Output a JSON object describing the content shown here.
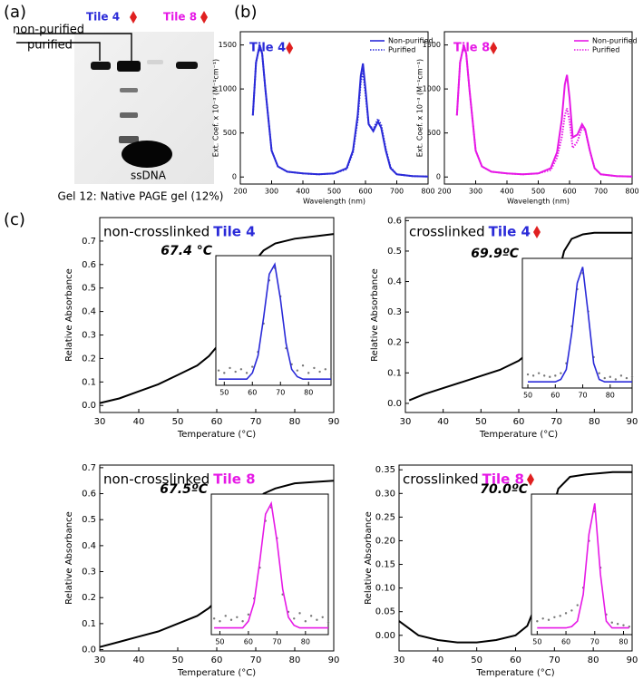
{
  "panel_labels": [
    "(a)",
    "(b)",
    "(c)"
  ],
  "gel": {
    "lane_labels": [
      "Tile 4",
      "Tile 8"
    ],
    "band_labels": [
      "non-purified",
      "purified"
    ],
    "ssdna_label": "ssDNA",
    "caption": "Gel 12: Native PAGE gel (12%)"
  },
  "chart_data": [
    {
      "type": "line",
      "title": "Tile 4",
      "title_color": "#2a2ad8",
      "title_marker": true,
      "x_label": "Wavelength (nm)",
      "y_label": "Ext. Coef. x 10⁻³ (M⁻¹cm⁻¹)",
      "legend": "top-right",
      "x": [
        240,
        250,
        262,
        270,
        280,
        300,
        320,
        350,
        400,
        450,
        500,
        540,
        560,
        575,
        585,
        592,
        600,
        610,
        625,
        640,
        650,
        665,
        680,
        700,
        750,
        800
      ],
      "series": [
        {
          "name": "Non-purified",
          "color": "#2a2ad8",
          "dash": false,
          "values": [
            700,
            1300,
            1500,
            1400,
            1000,
            300,
            120,
            60,
            40,
            30,
            40,
            100,
            300,
            700,
            1150,
            1290,
            1000,
            600,
            520,
            630,
            560,
            300,
            100,
            30,
            10,
            5
          ]
        },
        {
          "name": "Purified",
          "color": "#2a2ad8",
          "dash": true,
          "values": [
            700,
            1300,
            1500,
            1400,
            1000,
            300,
            120,
            60,
            40,
            30,
            40,
            90,
            280,
            650,
            1080,
            1200,
            950,
            600,
            540,
            660,
            590,
            320,
            110,
            30,
            10,
            5
          ]
        }
      ],
      "xlim": [
        200,
        800
      ],
      "xticks": [
        200,
        300,
        400,
        500,
        600,
        700,
        800
      ],
      "ylim": [
        -80,
        1650
      ],
      "yticks": [
        0,
        500,
        1000,
        1500
      ]
    },
    {
      "type": "line",
      "title": "Tile 8",
      "title_color": "#e619e6",
      "title_marker": true,
      "x_label": "Wavelength (nm)",
      "y_label": "Ext. Coef. x 10⁻³ (M⁻¹cm⁻¹)",
      "legend": "top-right",
      "x": [
        240,
        250,
        262,
        270,
        280,
        300,
        320,
        350,
        400,
        450,
        500,
        540,
        560,
        575,
        585,
        592,
        600,
        610,
        625,
        640,
        650,
        665,
        680,
        700,
        750,
        800
      ],
      "series": [
        {
          "name": "Non-purified",
          "color": "#e619e6",
          "dash": false,
          "values": [
            700,
            1300,
            1500,
            1400,
            1000,
            300,
            120,
            60,
            40,
            30,
            40,
            100,
            280,
            650,
            1050,
            1160,
            900,
            450,
            480,
            600,
            540,
            300,
            100,
            30,
            10,
            5
          ]
        },
        {
          "name": "Purified",
          "color": "#e619e6",
          "dash": true,
          "values": [
            700,
            1300,
            1500,
            1400,
            1000,
            300,
            120,
            60,
            40,
            30,
            40,
            80,
            220,
            450,
            700,
            780,
            640,
            330,
            400,
            560,
            530,
            300,
            100,
            30,
            10,
            5
          ]
        }
      ],
      "xlim": [
        200,
        800
      ],
      "xticks": [
        200,
        300,
        400,
        500,
        600,
        700,
        800
      ],
      "ylim": [
        -80,
        1650
      ],
      "yticks": [
        0,
        500,
        1000,
        1500
      ]
    },
    {
      "type": "line",
      "title": "non-crosslinked",
      "title_highlight": "Tile 4",
      "title_color": "#2a2ad8",
      "title_marker": false,
      "x_label": "Temperature (°C)",
      "y_label": "Relative Absorbance",
      "x": [
        30,
        35,
        40,
        45,
        50,
        55,
        58,
        60,
        62,
        64,
        66,
        68,
        70,
        72,
        75,
        80,
        85,
        90
      ],
      "series": [
        {
          "color": "#000000",
          "values": [
            0.01,
            0.03,
            0.06,
            0.09,
            0.13,
            0.17,
            0.21,
            0.25,
            0.3,
            0.38,
            0.47,
            0.56,
            0.62,
            0.66,
            0.69,
            0.71,
            0.72,
            0.73
          ]
        }
      ],
      "xlim": [
        30,
        90
      ],
      "xticks": [
        30,
        40,
        50,
        60,
        70,
        80,
        90
      ],
      "ylim": [
        -0.03,
        0.8
      ],
      "yticks": [
        {
          "value": 0,
          "label": "0.0"
        },
        0.1,
        0.2,
        0.3,
        0.4,
        0.5,
        0.6,
        0.7
      ]
    },
    {
      "type": "line",
      "annotation": "67.4 °C",
      "x": [
        48,
        50,
        52,
        54,
        56,
        58,
        60,
        62,
        64,
        66,
        68,
        70,
        72,
        74,
        76,
        78,
        80,
        82,
        84,
        86,
        88
      ],
      "series": [
        {
          "color": "#777777",
          "marker": "dot",
          "values": [
            0.12,
            0.1,
            0.14,
            0.11,
            0.13,
            0.1,
            0.15,
            0.27,
            0.5,
            0.85,
            0.95,
            0.72,
            0.3,
            0.17,
            0.12,
            0.16,
            0.1,
            0.14,
            0.11,
            0.13,
            0.09
          ]
        },
        {
          "color": "#2a2ad8",
          "values": [
            0.05,
            0.05,
            0.05,
            0.05,
            0.05,
            0.05,
            0.1,
            0.24,
            0.55,
            0.9,
            0.98,
            0.7,
            0.34,
            0.13,
            0.07,
            0.05,
            0.05,
            0.05,
            0.05,
            0.05,
            0.05
          ]
        }
      ],
      "xlim": [
        47,
        88
      ],
      "xticks": [
        50,
        60,
        70,
        80
      ],
      "ylim": [
        0,
        1.05
      ]
    },
    {
      "type": "line",
      "title": "crosslinked",
      "title_highlight": "Tile 4",
      "title_color": "#2a2ad8",
      "title_marker": true,
      "x_label": "Temperature (°C)",
      "y_label": "Relative Absorbance",
      "x": [
        31,
        35,
        40,
        45,
        50,
        55,
        60,
        63,
        66,
        68,
        70,
        72,
        74,
        77,
        80,
        85,
        90
      ],
      "series": [
        {
          "color": "#000000",
          "values": [
            0.01,
            0.03,
            0.05,
            0.07,
            0.09,
            0.11,
            0.14,
            0.17,
            0.22,
            0.3,
            0.4,
            0.5,
            0.54,
            0.555,
            0.56,
            0.56,
            0.56
          ]
        }
      ],
      "xlim": [
        30,
        90
      ],
      "xticks": [
        30,
        40,
        50,
        60,
        70,
        80,
        90
      ],
      "ylim": [
        -0.03,
        0.61
      ],
      "yticks": [
        {
          "value": 0,
          "label": "0.0"
        },
        0.1,
        0.2,
        0.3,
        0.4,
        0.5,
        0.6
      ]
    },
    {
      "type": "line",
      "annotation": "69.9ºC",
      "x": [
        50,
        52,
        54,
        56,
        58,
        60,
        62,
        64,
        66,
        68,
        70,
        72,
        74,
        76,
        78,
        80,
        82,
        84,
        86,
        88
      ],
      "series": [
        {
          "color": "#777777",
          "marker": "dot",
          "values": [
            0.11,
            0.1,
            0.12,
            0.1,
            0.09,
            0.1,
            0.12,
            0.2,
            0.5,
            0.8,
            0.93,
            0.62,
            0.25,
            0.12,
            0.08,
            0.09,
            0.07,
            0.1,
            0.08,
            0.09
          ]
        },
        {
          "color": "#2a2ad8",
          "values": [
            0.05,
            0.05,
            0.05,
            0.05,
            0.05,
            0.05,
            0.07,
            0.15,
            0.45,
            0.85,
            0.98,
            0.6,
            0.2,
            0.07,
            0.05,
            0.05,
            0.05,
            0.05,
            0.05,
            0.05
          ]
        }
      ],
      "xlim": [
        48,
        88
      ],
      "xticks": [
        50,
        60,
        70,
        80
      ],
      "ylim": [
        0,
        1.05
      ]
    },
    {
      "type": "line",
      "title": "non-crosslinked",
      "title_highlight": "Tile 8",
      "title_color": "#e619e6",
      "title_marker": false,
      "x_label": "Temperature (°C)",
      "y_label": "Relative Absorbance",
      "x": [
        30,
        35,
        40,
        45,
        50,
        55,
        58,
        60,
        62,
        64,
        66,
        68,
        70,
        72,
        75,
        80,
        85,
        90
      ],
      "series": [
        {
          "color": "#000000",
          "values": [
            0.01,
            0.03,
            0.05,
            0.07,
            0.1,
            0.13,
            0.16,
            0.19,
            0.24,
            0.3,
            0.4,
            0.5,
            0.56,
            0.6,
            0.62,
            0.64,
            0.645,
            0.65
          ]
        }
      ],
      "xlim": [
        30,
        90
      ],
      "xticks": [
        30,
        40,
        50,
        60,
        70,
        80,
        90
      ],
      "ylim": [
        -0.005,
        0.71
      ],
      "yticks": [
        {
          "value": 0,
          "label": "0.0"
        },
        0.1,
        0.2,
        0.3,
        0.4,
        0.5,
        0.6,
        0.7
      ]
    },
    {
      "type": "line",
      "annotation": "67.5ºC",
      "x": [
        48,
        50,
        52,
        54,
        56,
        58,
        60,
        62,
        64,
        66,
        68,
        70,
        72,
        74,
        76,
        78,
        80,
        82,
        84,
        86,
        88
      ],
      "series": [
        {
          "color": "#777777",
          "marker": "dot",
          "values": [
            0.12,
            0.1,
            0.14,
            0.11,
            0.13,
            0.1,
            0.15,
            0.27,
            0.5,
            0.85,
            0.95,
            0.72,
            0.3,
            0.17,
            0.12,
            0.16,
            0.1,
            0.14,
            0.11,
            0.13,
            0.09
          ]
        },
        {
          "color": "#e619e6",
          "values": [
            0.05,
            0.05,
            0.05,
            0.05,
            0.05,
            0.05,
            0.1,
            0.24,
            0.55,
            0.9,
            0.98,
            0.7,
            0.34,
            0.13,
            0.07,
            0.05,
            0.05,
            0.05,
            0.05,
            0.05,
            0.05
          ]
        }
      ],
      "xlim": [
        47,
        88
      ],
      "xticks": [
        50,
        60,
        70,
        80
      ],
      "ylim": [
        0,
        1.05
      ]
    },
    {
      "type": "line",
      "title": "crosslinked",
      "title_highlight": "Tile 8",
      "title_color": "#e619e6",
      "title_marker": true,
      "x_label": "Temperature (°C)",
      "y_label": "Relative Absorbance",
      "x": [
        30,
        35,
        40,
        45,
        50,
        55,
        60,
        63,
        65,
        67,
        69,
        71,
        74,
        78,
        85,
        90
      ],
      "series": [
        {
          "color": "#000000",
          "values": [
            0.03,
            0.0,
            -0.01,
            -0.015,
            -0.015,
            -0.01,
            0,
            0.02,
            0.06,
            0.15,
            0.25,
            0.31,
            0.335,
            0.34,
            0.345,
            0.345
          ]
        }
      ],
      "xlim": [
        30,
        90
      ],
      "xticks": [
        30,
        40,
        50,
        60,
        70,
        80,
        90
      ],
      "ylim": [
        -0.033,
        0.36
      ],
      "yticks": [
        {
          "value": 0,
          "label": "0.00"
        },
        0.05,
        {
          "value": 0.1,
          "label": "0.10"
        },
        0.15,
        {
          "value": 0.2,
          "label": "0.20"
        },
        0.25,
        {
          "value": 0.3,
          "label": "0.30"
        },
        0.35
      ]
    },
    {
      "type": "line",
      "annotation": "70.0ºC",
      "x": [
        50,
        52,
        54,
        56,
        58,
        60,
        62,
        64,
        66,
        68,
        70,
        72,
        74,
        76,
        78,
        80,
        82
      ],
      "series": [
        {
          "color": "#777777",
          "marker": "dot",
          "values": [
            0.1,
            0.12,
            0.11,
            0.13,
            0.14,
            0.16,
            0.18,
            0.22,
            0.35,
            0.7,
            0.92,
            0.5,
            0.15,
            0.09,
            0.08,
            0.07,
            0.06
          ]
        },
        {
          "color": "#e619e6",
          "values": [
            0.05,
            0.05,
            0.05,
            0.05,
            0.05,
            0.05,
            0.06,
            0.1,
            0.3,
            0.75,
            0.98,
            0.45,
            0.1,
            0.05,
            0.05,
            0.05,
            0.05
          ]
        }
      ],
      "xlim": [
        48,
        83
      ],
      "xticks": [
        50,
        60,
        70,
        80
      ],
      "ylim": [
        0,
        1.05
      ]
    }
  ]
}
